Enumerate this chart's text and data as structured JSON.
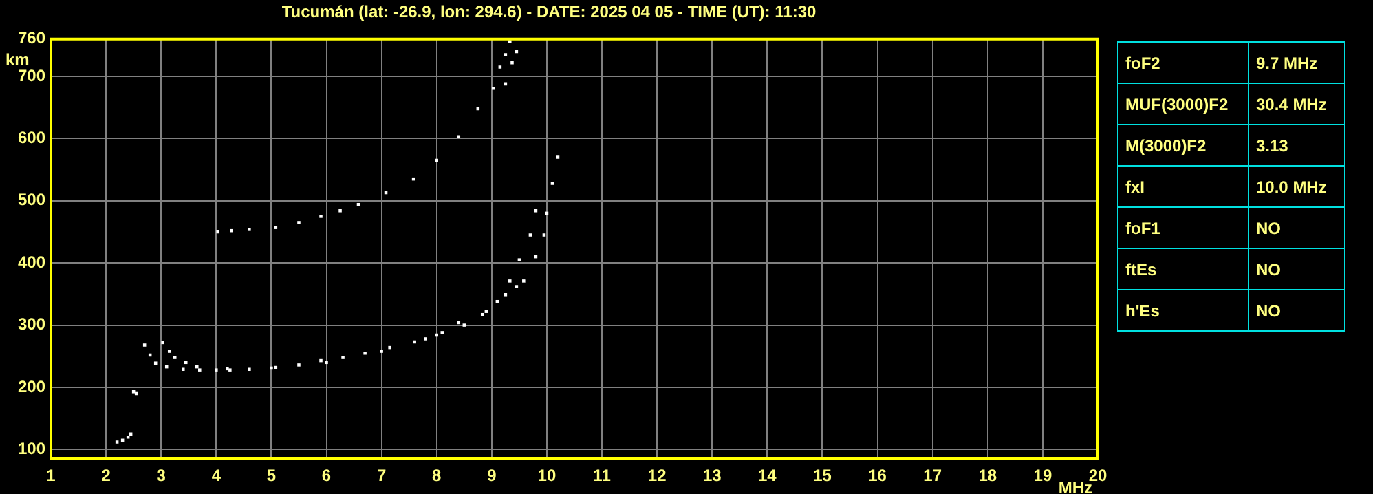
{
  "chart_data": [
    {
      "type": "scatter",
      "title": "Tucumán (lat: -26.9, lon: 294.6) - DATE: 2025 04 05 - TIME (UT): 11:30",
      "xlabel": "MHz",
      "ylabel": "km",
      "xlim": [
        1,
        20
      ],
      "ylim": [
        86,
        760
      ],
      "xticks": [
        1,
        2,
        3,
        4,
        5,
        6,
        7,
        8,
        9,
        10,
        11,
        12,
        13,
        14,
        15,
        16,
        17,
        18,
        19,
        20
      ],
      "yticks": [
        100,
        200,
        300,
        400,
        500,
        600,
        700,
        760
      ],
      "grid": true,
      "legend": false,
      "marker": "square",
      "series": [
        {
          "color": "#ffffff",
          "x": [
            2.7,
            2.8,
            2.9,
            3.1,
            3.4,
            3.7,
            4.0,
            4.25,
            4.6,
            5.08,
            5.5,
            5.9,
            6.3,
            6.7,
            7.15,
            7.6,
            8.0,
            8.4,
            8.83,
            9.1,
            9.33,
            9.5,
            9.7,
            9.8
          ],
          "values": [
            268,
            252,
            239,
            233,
            229,
            228,
            228,
            228,
            229,
            232,
            236,
            243,
            248,
            255,
            264,
            273,
            284,
            304,
            317,
            338,
            371,
            405,
            445,
            484
          ]
        },
        {
          "color": "#ffffff",
          "x": [
            3.03,
            3.15,
            3.25,
            3.45,
            3.65,
            4.2,
            5.0,
            6.0,
            7.0,
            7.8,
            8.1,
            8.5,
            8.9,
            9.25,
            9.45,
            9.58,
            9.8,
            9.95,
            10.0,
            10.1,
            10.2
          ],
          "values": [
            272,
            258,
            248,
            240,
            233,
            230,
            231,
            240,
            258,
            278,
            288,
            300,
            322,
            349,
            362,
            371,
            410,
            445,
            480,
            528,
            570
          ]
        },
        {
          "color": "#ffffff",
          "x": [
            4.03,
            4.28,
            4.6,
            5.08,
            5.5,
            5.9,
            6.25,
            6.58,
            7.08,
            7.58,
            8.0,
            8.4,
            8.75,
            9.03,
            9.15,
            9.25,
            9.33
          ],
          "values": [
            450,
            452,
            454,
            457,
            465,
            475,
            484,
            494,
            513,
            535,
            565,
            603,
            648,
            681,
            715,
            735,
            756
          ]
        },
        {
          "color": "#ffffff",
          "x": [
            9.25,
            9.37,
            9.45
          ],
          "values": [
            688,
            722,
            740
          ]
        },
        {
          "color": "#ffffff",
          "x": [
            2.2,
            2.3,
            2.4,
            2.45,
            2.5,
            2.55
          ],
          "values": [
            112,
            115,
            120,
            125,
            193,
            190
          ]
        }
      ]
    },
    {
      "type": "other",
      "annotations": [
        "foF2",
        "9.7 MHz",
        "MUF(3000)F2",
        "30.4 MHz",
        "M(3000)F2",
        "3.13",
        "fxI",
        "10.0 MHz",
        "foF1",
        "NO",
        "ftEs",
        "NO",
        "h'Es",
        "NO"
      ]
    }
  ]
}
